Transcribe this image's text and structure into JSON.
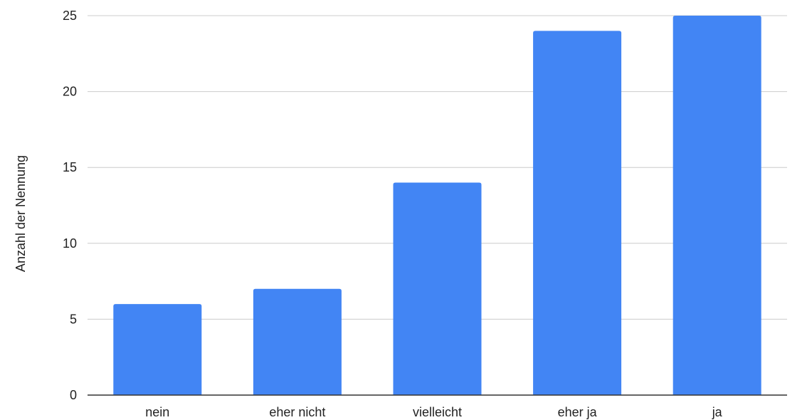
{
  "chart_data": {
    "type": "bar",
    "title": "",
    "xlabel": "",
    "ylabel": "Anzahl der Nennung",
    "categories": [
      "nein",
      "eher nicht",
      "vielleicht",
      "eher ja",
      "ja"
    ],
    "values": [
      6,
      7,
      14,
      24,
      25
    ],
    "ylim": [
      0,
      25
    ],
    "yticks": [
      0,
      5,
      10,
      15,
      20,
      25
    ],
    "grid": true,
    "legend": "none",
    "colors": {
      "bar": "#4285F4",
      "grid": "#cccccc",
      "axis": "#333333",
      "text": "#222222"
    }
  }
}
